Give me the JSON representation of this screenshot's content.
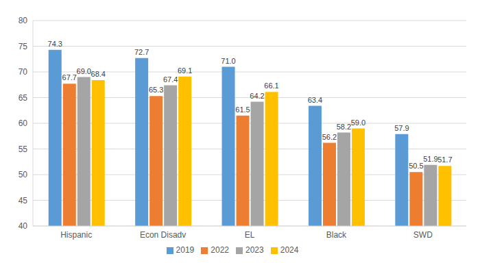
{
  "chart_data": {
    "type": "bar",
    "categories": [
      "Hispanic",
      "Econ Disadv",
      "EL",
      "Black",
      "SWD"
    ],
    "series": [
      {
        "name": "2019",
        "color": "#5b9bd5",
        "values": [
          74.3,
          72.7,
          71.0,
          63.4,
          57.9
        ],
        "value_labels": [
          "74.3",
          "72.7",
          "71.0",
          "63.4",
          "57.9"
        ]
      },
      {
        "name": "2022",
        "color": "#ed7d31",
        "values": [
          67.7,
          65.3,
          61.5,
          56.2,
          50.5
        ],
        "value_labels": [
          "67.7",
          "65.3",
          "61.5",
          "56.2",
          "50.5"
        ]
      },
      {
        "name": "2023",
        "color": "#a5a5a5",
        "values": [
          69.0,
          67.4,
          64.2,
          58.2,
          51.9
        ],
        "value_labels": [
          "69.0",
          "67.4",
          "64.2",
          "58.2",
          "51.9"
        ]
      },
      {
        "name": "2024",
        "color": "#ffc000",
        "values": [
          68.4,
          69.1,
          66.1,
          59.0,
          51.7
        ],
        "value_labels": [
          "68.4",
          "69.1",
          "66.1",
          "59.0",
          "51.7"
        ]
      }
    ],
    "ylim": [
      40,
      80
    ],
    "yticks": [
      40,
      45,
      50,
      55,
      60,
      65,
      70,
      75,
      80
    ],
    "grid": true,
    "legend": "bottom",
    "data_labels": true
  }
}
